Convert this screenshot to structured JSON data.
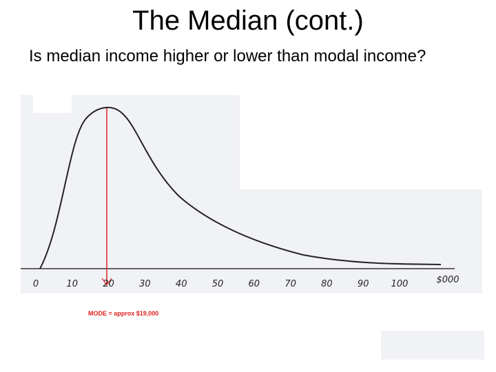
{
  "title": "The Median (cont.)",
  "question": "Is median income higher or lower than modal income?",
  "figure": {
    "x_labels": [
      "0",
      "10",
      "20",
      "30",
      "40",
      "50",
      "60",
      "70",
      "80",
      "90",
      "100"
    ],
    "unit_label": "$000",
    "annotation": "MODE = approx $19,000"
  }
}
